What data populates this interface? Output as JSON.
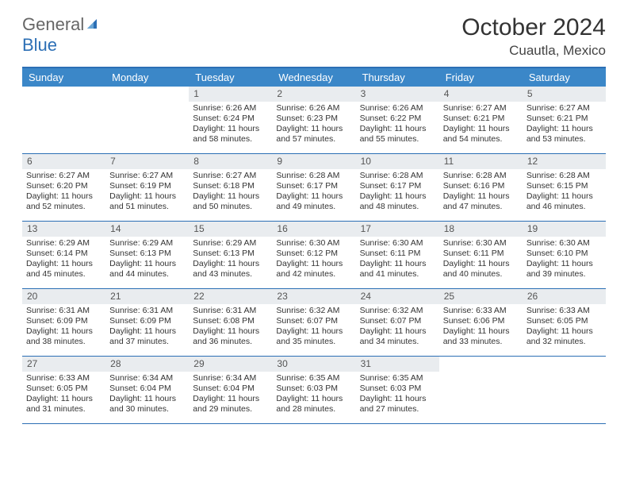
{
  "brand": {
    "part1": "General",
    "part2": "Blue"
  },
  "title": "October 2024",
  "location": "Cuautla, Mexico",
  "colors": {
    "header_bg": "#3b87c8",
    "border": "#2c6fb5",
    "daynum_bg": "#e9ecef",
    "text": "#333333",
    "brand_gray": "#666666",
    "brand_blue": "#2c6fb5"
  },
  "day_names": [
    "Sunday",
    "Monday",
    "Tuesday",
    "Wednesday",
    "Thursday",
    "Friday",
    "Saturday"
  ],
  "weeks": [
    [
      {
        "n": "",
        "empty": true
      },
      {
        "n": "",
        "empty": true
      },
      {
        "n": "1",
        "sunrise": "Sunrise: 6:26 AM",
        "sunset": "Sunset: 6:24 PM",
        "day1": "Daylight: 11 hours",
        "day2": "and 58 minutes."
      },
      {
        "n": "2",
        "sunrise": "Sunrise: 6:26 AM",
        "sunset": "Sunset: 6:23 PM",
        "day1": "Daylight: 11 hours",
        "day2": "and 57 minutes."
      },
      {
        "n": "3",
        "sunrise": "Sunrise: 6:26 AM",
        "sunset": "Sunset: 6:22 PM",
        "day1": "Daylight: 11 hours",
        "day2": "and 55 minutes."
      },
      {
        "n": "4",
        "sunrise": "Sunrise: 6:27 AM",
        "sunset": "Sunset: 6:21 PM",
        "day1": "Daylight: 11 hours",
        "day2": "and 54 minutes."
      },
      {
        "n": "5",
        "sunrise": "Sunrise: 6:27 AM",
        "sunset": "Sunset: 6:21 PM",
        "day1": "Daylight: 11 hours",
        "day2": "and 53 minutes."
      }
    ],
    [
      {
        "n": "6",
        "sunrise": "Sunrise: 6:27 AM",
        "sunset": "Sunset: 6:20 PM",
        "day1": "Daylight: 11 hours",
        "day2": "and 52 minutes."
      },
      {
        "n": "7",
        "sunrise": "Sunrise: 6:27 AM",
        "sunset": "Sunset: 6:19 PM",
        "day1": "Daylight: 11 hours",
        "day2": "and 51 minutes."
      },
      {
        "n": "8",
        "sunrise": "Sunrise: 6:27 AM",
        "sunset": "Sunset: 6:18 PM",
        "day1": "Daylight: 11 hours",
        "day2": "and 50 minutes."
      },
      {
        "n": "9",
        "sunrise": "Sunrise: 6:28 AM",
        "sunset": "Sunset: 6:17 PM",
        "day1": "Daylight: 11 hours",
        "day2": "and 49 minutes."
      },
      {
        "n": "10",
        "sunrise": "Sunrise: 6:28 AM",
        "sunset": "Sunset: 6:17 PM",
        "day1": "Daylight: 11 hours",
        "day2": "and 48 minutes."
      },
      {
        "n": "11",
        "sunrise": "Sunrise: 6:28 AM",
        "sunset": "Sunset: 6:16 PM",
        "day1": "Daylight: 11 hours",
        "day2": "and 47 minutes."
      },
      {
        "n": "12",
        "sunrise": "Sunrise: 6:28 AM",
        "sunset": "Sunset: 6:15 PM",
        "day1": "Daylight: 11 hours",
        "day2": "and 46 minutes."
      }
    ],
    [
      {
        "n": "13",
        "sunrise": "Sunrise: 6:29 AM",
        "sunset": "Sunset: 6:14 PM",
        "day1": "Daylight: 11 hours",
        "day2": "and 45 minutes."
      },
      {
        "n": "14",
        "sunrise": "Sunrise: 6:29 AM",
        "sunset": "Sunset: 6:13 PM",
        "day1": "Daylight: 11 hours",
        "day2": "and 44 minutes."
      },
      {
        "n": "15",
        "sunrise": "Sunrise: 6:29 AM",
        "sunset": "Sunset: 6:13 PM",
        "day1": "Daylight: 11 hours",
        "day2": "and 43 minutes."
      },
      {
        "n": "16",
        "sunrise": "Sunrise: 6:30 AM",
        "sunset": "Sunset: 6:12 PM",
        "day1": "Daylight: 11 hours",
        "day2": "and 42 minutes."
      },
      {
        "n": "17",
        "sunrise": "Sunrise: 6:30 AM",
        "sunset": "Sunset: 6:11 PM",
        "day1": "Daylight: 11 hours",
        "day2": "and 41 minutes."
      },
      {
        "n": "18",
        "sunrise": "Sunrise: 6:30 AM",
        "sunset": "Sunset: 6:11 PM",
        "day1": "Daylight: 11 hours",
        "day2": "and 40 minutes."
      },
      {
        "n": "19",
        "sunrise": "Sunrise: 6:30 AM",
        "sunset": "Sunset: 6:10 PM",
        "day1": "Daylight: 11 hours",
        "day2": "and 39 minutes."
      }
    ],
    [
      {
        "n": "20",
        "sunrise": "Sunrise: 6:31 AM",
        "sunset": "Sunset: 6:09 PM",
        "day1": "Daylight: 11 hours",
        "day2": "and 38 minutes."
      },
      {
        "n": "21",
        "sunrise": "Sunrise: 6:31 AM",
        "sunset": "Sunset: 6:09 PM",
        "day1": "Daylight: 11 hours",
        "day2": "and 37 minutes."
      },
      {
        "n": "22",
        "sunrise": "Sunrise: 6:31 AM",
        "sunset": "Sunset: 6:08 PM",
        "day1": "Daylight: 11 hours",
        "day2": "and 36 minutes."
      },
      {
        "n": "23",
        "sunrise": "Sunrise: 6:32 AM",
        "sunset": "Sunset: 6:07 PM",
        "day1": "Daylight: 11 hours",
        "day2": "and 35 minutes."
      },
      {
        "n": "24",
        "sunrise": "Sunrise: 6:32 AM",
        "sunset": "Sunset: 6:07 PM",
        "day1": "Daylight: 11 hours",
        "day2": "and 34 minutes."
      },
      {
        "n": "25",
        "sunrise": "Sunrise: 6:33 AM",
        "sunset": "Sunset: 6:06 PM",
        "day1": "Daylight: 11 hours",
        "day2": "and 33 minutes."
      },
      {
        "n": "26",
        "sunrise": "Sunrise: 6:33 AM",
        "sunset": "Sunset: 6:05 PM",
        "day1": "Daylight: 11 hours",
        "day2": "and 32 minutes."
      }
    ],
    [
      {
        "n": "27",
        "sunrise": "Sunrise: 6:33 AM",
        "sunset": "Sunset: 6:05 PM",
        "day1": "Daylight: 11 hours",
        "day2": "and 31 minutes."
      },
      {
        "n": "28",
        "sunrise": "Sunrise: 6:34 AM",
        "sunset": "Sunset: 6:04 PM",
        "day1": "Daylight: 11 hours",
        "day2": "and 30 minutes."
      },
      {
        "n": "29",
        "sunrise": "Sunrise: 6:34 AM",
        "sunset": "Sunset: 6:04 PM",
        "day1": "Daylight: 11 hours",
        "day2": "and 29 minutes."
      },
      {
        "n": "30",
        "sunrise": "Sunrise: 6:35 AM",
        "sunset": "Sunset: 6:03 PM",
        "day1": "Daylight: 11 hours",
        "day2": "and 28 minutes."
      },
      {
        "n": "31",
        "sunrise": "Sunrise: 6:35 AM",
        "sunset": "Sunset: 6:03 PM",
        "day1": "Daylight: 11 hours",
        "day2": "and 27 minutes."
      },
      {
        "n": "",
        "empty": true
      },
      {
        "n": "",
        "empty": true
      }
    ]
  ]
}
